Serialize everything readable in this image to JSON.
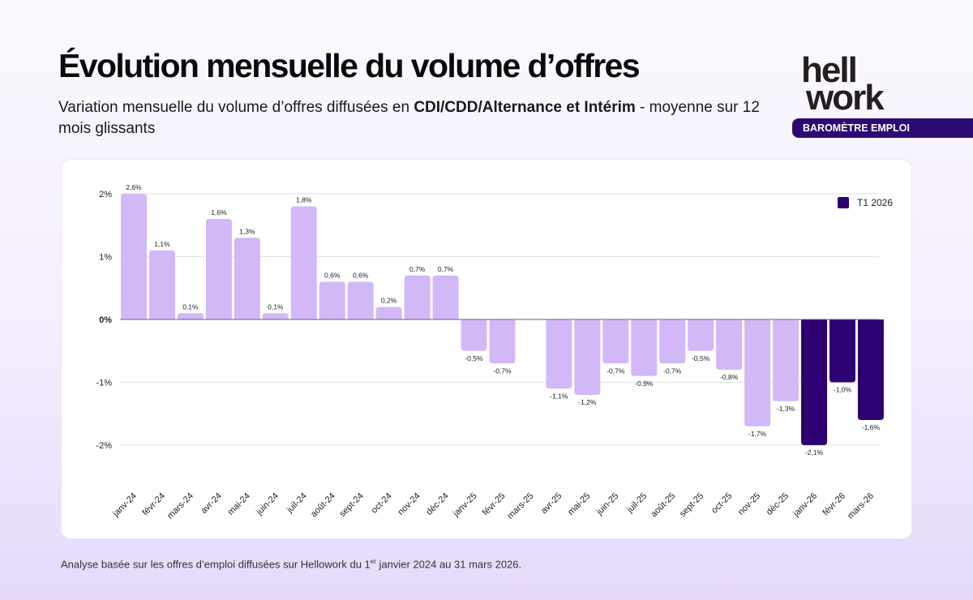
{
  "header": {
    "title": "Évolution mensuelle du volume d’offres",
    "subtitle_pre": "Variation mensuelle du volume d’offres diffusées en ",
    "subtitle_bold": "CDI/CDD/Alternance et Intérim",
    "subtitle_post": " - moyenne sur 12 mois glissants"
  },
  "brand": {
    "logo_line1": "hell",
    "logo_line2": "work",
    "badge": "BAROMÈTRE EMPLOI",
    "color": "#2d0a73"
  },
  "footnote": {
    "pre": "Analyse basée sur les offres d’emploi diffusées sur Hellowork du 1",
    "sup": "er",
    "post": " janvier 2024 au 31 mars 2026."
  },
  "chart_data": {
    "type": "bar",
    "title": "",
    "xlabel": "",
    "ylabel": "",
    "ylim": [
      -2,
      2
    ],
    "yticks": [
      2,
      1,
      0,
      -1,
      -2
    ],
    "ytick_labels": [
      "2%",
      "1%",
      "0%",
      "-1%",
      "-2%"
    ],
    "grid": true,
    "legend": {
      "position": "top-right",
      "entries": [
        {
          "name": "T1 2026",
          "color": "#2d0073"
        }
      ]
    },
    "colors": {
      "default": "#d3b8f8",
      "highlight": "#2d0073"
    },
    "categories": [
      "janv-24",
      "févr-24",
      "mars-24",
      "avr-24",
      "mai-24",
      "juin-24",
      "juil-24",
      "août-24",
      "sept-24",
      "oct-24",
      "nov-24",
      "déc-24",
      "janv-25",
      "févr-25",
      "mars-25",
      "avr-25",
      "mai-25",
      "juin-25",
      "juil-25",
      "août-25",
      "sept-25",
      "oct-25",
      "nov-25",
      "déc-25",
      "janv-26",
      "févr-26",
      "mars-26"
    ],
    "values": [
      2.6,
      1.1,
      0.1,
      1.6,
      1.3,
      0.1,
      1.8,
      0.6,
      0.6,
      0.2,
      0.7,
      0.7,
      -0.5,
      -0.7,
      0,
      -1.1,
      -1.2,
      -0.7,
      -0.9,
      -0.7,
      -0.5,
      -0.8,
      -1.7,
      -1.3,
      -2.1,
      -1.0,
      -1.6
    ],
    "data_labels": [
      "2,6%",
      "1,1%",
      "0,1%",
      "1,6%",
      "1,3%",
      "0,1%",
      "1,8%",
      "0,6%",
      "0,6%",
      "0,2%",
      "0,7%",
      "0,7%",
      "-0,5%",
      "-0,7%",
      "",
      "-1,1%",
      "-1,2%",
      "-0,7%",
      "-0,9%",
      "-0,7%",
      "-0,5%",
      "-0,8%",
      "-1,7%",
      "-1,3%",
      "-2,1%",
      "-1,0%",
      "-1,6%"
    ],
    "highlighted": [
      "janv-26",
      "févr-26",
      "mars-26"
    ]
  }
}
